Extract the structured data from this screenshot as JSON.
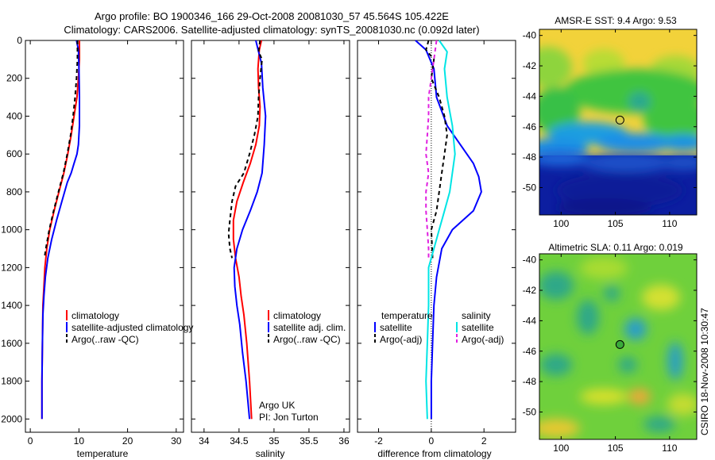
{
  "header": {
    "title_line1": "Argo profile: BO 1900346_166 29-Oct-2008 20081030_57 45.564S 105.422E",
    "title_line2": "Climatology: CARS2006. Satellite-adjusted climatology: synTS_20081030.nc (0.092d later)"
  },
  "stamp": "CSIRO 18-Nov-2008 10:30:47",
  "credit": {
    "line1": "Argo UK",
    "line2": "PI: Jon Turton"
  },
  "colors": {
    "climatology": "#ff0000",
    "satellite": "#0000ff",
    "argo": "#000000",
    "sat_salinity": "#00e5e5",
    "argo_salinity": "#e020e0"
  },
  "chart_data": [
    {
      "type": "line",
      "xlabel": "temperature",
      "xlim": [
        -1,
        31.5
      ],
      "xticks": [
        0,
        10,
        20,
        30
      ],
      "ylim": [
        2070,
        0
      ],
      "yticks": [
        0,
        200,
        400,
        600,
        800,
        1000,
        1200,
        1400,
        1600,
        1800,
        2000
      ],
      "legend": [
        "climatology",
        "satellite-adjusted climatology",
        "Argo(..raw -QC)"
      ],
      "series": [
        {
          "name": "climatology",
          "color": "#ff0000",
          "dash": "",
          "points": [
            [
              10.1,
              0
            ],
            [
              10.1,
              100
            ],
            [
              9.9,
              200
            ],
            [
              9.6,
              300
            ],
            [
              9.0,
              400
            ],
            [
              8.4,
              500
            ],
            [
              7.7,
              600
            ],
            [
              6.9,
              700
            ],
            [
              5.9,
              800
            ],
            [
              4.9,
              900
            ],
            [
              4.0,
              1000
            ],
            [
              3.4,
              1100
            ],
            [
              3.0,
              1200
            ],
            [
              2.8,
              1300
            ],
            [
              2.6,
              1400
            ],
            [
              2.5,
              1600
            ],
            [
              2.4,
              1800
            ],
            [
              2.4,
              2000
            ]
          ]
        },
        {
          "name": "satellite-adjusted climatology",
          "color": "#0000ff",
          "dash": "",
          "points": [
            [
              9.5,
              0
            ],
            [
              9.9,
              50
            ],
            [
              10.0,
              150
            ],
            [
              10.1,
              300
            ],
            [
              10.1,
              450
            ],
            [
              9.9,
              550
            ],
            [
              9.6,
              600
            ],
            [
              9.0,
              650
            ],
            [
              8.4,
              700
            ],
            [
              7.6,
              750
            ],
            [
              6.5,
              850
            ],
            [
              5.4,
              950
            ],
            [
              4.4,
              1050
            ],
            [
              3.6,
              1150
            ],
            [
              3.1,
              1250
            ],
            [
              2.8,
              1350
            ],
            [
              2.6,
              1450
            ],
            [
              2.5,
              1600
            ],
            [
              2.4,
              1800
            ],
            [
              2.4,
              2000
            ]
          ]
        },
        {
          "name": "Argo(..raw -QC)",
          "color": "#000000",
          "dash": "5,4",
          "points": [
            [
              9.7,
              0
            ],
            [
              9.7,
              100
            ],
            [
              9.5,
              200
            ],
            [
              9.2,
              300
            ],
            [
              8.8,
              400
            ],
            [
              8.3,
              500
            ],
            [
              7.6,
              600
            ],
            [
              6.8,
              700
            ],
            [
              5.8,
              800
            ],
            [
              4.8,
              900
            ],
            [
              3.9,
              1000
            ],
            [
              3.2,
              1100
            ],
            [
              2.9,
              1150
            ]
          ]
        }
      ]
    },
    {
      "type": "line",
      "xlabel": "salinity",
      "xlim": [
        33.82,
        36.08
      ],
      "xticks": [
        34,
        34.5,
        35,
        35.5,
        36
      ],
      "ylim": [
        2070,
        0
      ],
      "legend": [
        "climatology",
        "satellite adj. clim.",
        "Argo(..raw -QC)"
      ],
      "series": [
        {
          "name": "climatology",
          "color": "#ff0000",
          "dash": "",
          "points": [
            [
              34.82,
              0
            ],
            [
              34.79,
              50
            ],
            [
              34.77,
              150
            ],
            [
              34.78,
              250
            ],
            [
              34.8,
              350
            ],
            [
              34.79,
              450
            ],
            [
              34.74,
              550
            ],
            [
              34.66,
              650
            ],
            [
              34.56,
              750
            ],
            [
              34.47,
              850
            ],
            [
              34.42,
              950
            ],
            [
              34.42,
              1050
            ],
            [
              34.45,
              1150
            ],
            [
              34.5,
              1250
            ],
            [
              34.53,
              1350
            ],
            [
              34.57,
              1450
            ],
            [
              34.61,
              1600
            ],
            [
              34.65,
              1800
            ],
            [
              34.68,
              2000
            ]
          ]
        },
        {
          "name": "satellite adj. clim.",
          "color": "#0000ff",
          "dash": "",
          "points": [
            [
              34.74,
              0
            ],
            [
              34.78,
              60
            ],
            [
              34.82,
              120
            ],
            [
              34.84,
              250
            ],
            [
              34.88,
              400
            ],
            [
              34.86,
              550
            ],
            [
              34.83,
              700
            ],
            [
              34.76,
              800
            ],
            [
              34.66,
              900
            ],
            [
              34.55,
              1000
            ],
            [
              34.47,
              1100
            ],
            [
              34.43,
              1200
            ],
            [
              34.44,
              1300
            ],
            [
              34.47,
              1400
            ],
            [
              34.51,
              1500
            ],
            [
              34.55,
              1650
            ],
            [
              34.6,
              1800
            ],
            [
              34.65,
              2000
            ]
          ]
        },
        {
          "name": "Argo(..raw -QC)",
          "color": "#000000",
          "dash": "5,4",
          "points": [
            [
              34.8,
              0
            ],
            [
              34.78,
              60
            ],
            [
              34.83,
              100
            ],
            [
              34.8,
              200
            ],
            [
              34.78,
              300
            ],
            [
              34.77,
              400
            ],
            [
              34.72,
              500
            ],
            [
              34.65,
              600
            ],
            [
              34.57,
              700
            ],
            [
              34.45,
              770
            ],
            [
              34.4,
              850
            ],
            [
              34.37,
              950
            ],
            [
              34.35,
              1020
            ],
            [
              34.37,
              1100
            ],
            [
              34.4,
              1150
            ]
          ]
        }
      ]
    },
    {
      "type": "line",
      "xlabel": "difference from climatology",
      "xlim": [
        -2.8,
        3.2
      ],
      "xticks": [
        -2,
        0,
        2
      ],
      "ylim": [
        2070,
        0
      ],
      "legend": [
        "temperature",
        "salinity",
        "satellite",
        "satellite",
        "Argo(-adj)",
        "Argo(-adj)"
      ],
      "series": [
        {
          "name": "satellite",
          "group": "temperature",
          "color": "#0000ff",
          "dash": "",
          "points": [
            [
              -0.6,
              0
            ],
            [
              -0.2,
              50
            ],
            [
              0.1,
              150
            ],
            [
              0.2,
              300
            ],
            [
              0.6,
              450
            ],
            [
              1.1,
              550
            ],
            [
              1.6,
              650
            ],
            [
              1.8,
              720
            ],
            [
              1.9,
              800
            ],
            [
              1.6,
              900
            ],
            [
              0.8,
              1000
            ],
            [
              0.4,
              1100
            ],
            [
              0.2,
              1250
            ],
            [
              0.1,
              1400
            ],
            [
              0.05,
              1600
            ],
            [
              0.0,
              1800
            ],
            [
              0.0,
              2000
            ]
          ]
        },
        {
          "name": "Argo(-adj)",
          "group": "temperature",
          "color": "#000000",
          "dash": "5,4",
          "points": [
            [
              -0.1,
              0
            ],
            [
              -0.2,
              50
            ],
            [
              0.1,
              100
            ],
            [
              0.0,
              200
            ],
            [
              0.3,
              300
            ],
            [
              0.5,
              400
            ],
            [
              0.6,
              500
            ],
            [
              0.5,
              600
            ],
            [
              0.4,
              700
            ],
            [
              0.3,
              800
            ],
            [
              0.2,
              900
            ],
            [
              0.0,
              1000
            ],
            [
              0.05,
              1150
            ]
          ]
        },
        {
          "name": "satellite",
          "group": "salinity",
          "color": "#00e5e5",
          "dash": "",
          "points": [
            [
              0.3,
              0
            ],
            [
              0.6,
              60
            ],
            [
              0.5,
              150
            ],
            [
              0.6,
              300
            ],
            [
              0.8,
              450
            ],
            [
              0.9,
              600
            ],
            [
              0.8,
              700
            ],
            [
              0.7,
              800
            ],
            [
              0.5,
              900
            ],
            [
              0.3,
              1000
            ],
            [
              0.1,
              1100
            ],
            [
              -0.1,
              1200
            ],
            [
              -0.1,
              1400
            ],
            [
              -0.15,
              1600
            ],
            [
              -0.2,
              1800
            ],
            [
              -0.15,
              2000
            ]
          ]
        },
        {
          "name": "Argo(-adj)",
          "group": "salinity",
          "color": "#e020e0",
          "dash": "5,4",
          "points": [
            [
              0.2,
              0
            ],
            [
              0.1,
              100
            ],
            [
              0.0,
              200
            ],
            [
              -0.1,
              300
            ],
            [
              -0.1,
              400
            ],
            [
              -0.15,
              500
            ],
            [
              -0.2,
              600
            ],
            [
              -0.1,
              700
            ],
            [
              -0.2,
              800
            ],
            [
              -0.2,
              900
            ],
            [
              -0.15,
              1000
            ],
            [
              -0.1,
              1100
            ],
            [
              -0.1,
              1150
            ]
          ]
        }
      ]
    },
    {
      "type": "heatmap",
      "title": "AMSR-E SST: 9.4 Argo: 9.53",
      "xlim": [
        98,
        112.5
      ],
      "ylim": [
        -51.8,
        -39.6
      ],
      "xticks": [
        100,
        105,
        110
      ],
      "yticks": [
        -40,
        -42,
        -44,
        -46,
        -48,
        -50
      ],
      "marker": {
        "lon": 105.422,
        "lat": -45.564
      }
    },
    {
      "type": "heatmap",
      "title": "Altimetric SLA: 0.11 Argo: 0.019",
      "xlim": [
        98,
        112.5
      ],
      "ylim": [
        -51.8,
        -39.6
      ],
      "xticks": [
        100,
        105,
        110
      ],
      "yticks": [
        -40,
        -42,
        -44,
        -46,
        -48,
        -50
      ],
      "marker": {
        "lon": 105.422,
        "lat": -45.564
      }
    }
  ]
}
